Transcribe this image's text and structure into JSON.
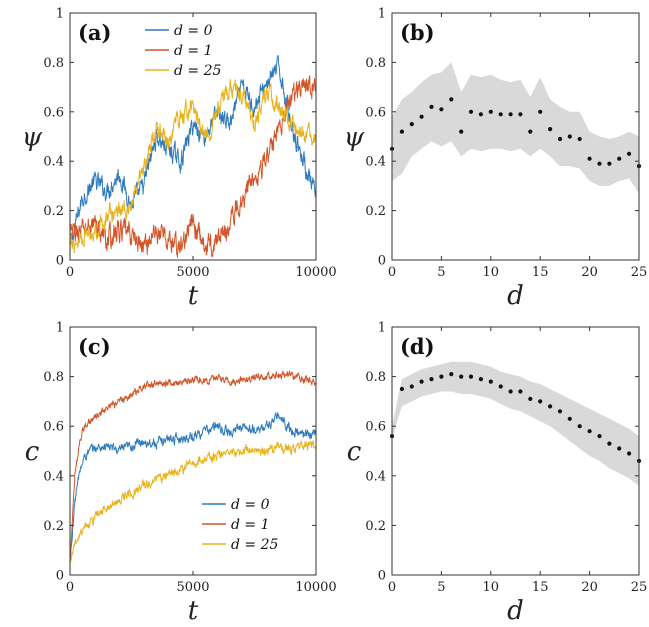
{
  "colors": {
    "d0": "#2f7bbd",
    "d1": "#d2562a",
    "d25": "#e8b21c",
    "band": "#d9d9d9",
    "dots": "#111111",
    "axis": "#333333"
  },
  "chart_data": [
    {
      "id": "a",
      "type": "line",
      "panel_label": "(a)",
      "xlabel": "t",
      "ylabel": "ψ",
      "xlim": [
        0,
        10000
      ],
      "ylim": [
        0,
        1
      ],
      "xticks": [
        0,
        5000,
        10000
      ],
      "xtick_labels": [
        "0",
        "5000",
        "10000"
      ],
      "yticks": [
        0,
        0.2,
        0.4,
        0.6,
        0.8,
        1
      ],
      "ytick_labels": [
        "0",
        "0.2",
        "0.4",
        "0.6",
        "0.8",
        "1"
      ],
      "legend_position": "top-left",
      "series": [
        {
          "name": "d = 0",
          "color_key": "d0",
          "noise": 0.03,
          "x": [
            0,
            500,
            1000,
            1500,
            2000,
            2500,
            3000,
            3500,
            4000,
            4500,
            5000,
            5500,
            6000,
            6500,
            7000,
            7500,
            8000,
            8500,
            9000,
            9500,
            10000
          ],
          "y": [
            0.05,
            0.25,
            0.32,
            0.28,
            0.35,
            0.22,
            0.3,
            0.5,
            0.45,
            0.4,
            0.55,
            0.5,
            0.6,
            0.55,
            0.7,
            0.62,
            0.72,
            0.78,
            0.55,
            0.4,
            0.25
          ]
        },
        {
          "name": "d = 1",
          "color_key": "d1",
          "noise": 0.035,
          "x": [
            0,
            500,
            1000,
            1500,
            2000,
            2500,
            3000,
            3500,
            4000,
            4500,
            5000,
            5500,
            6000,
            6500,
            7000,
            7500,
            8000,
            8500,
            9000,
            9500,
            10000
          ],
          "y": [
            0.1,
            0.12,
            0.15,
            0.08,
            0.12,
            0.1,
            0.05,
            0.12,
            0.08,
            0.05,
            0.15,
            0.05,
            0.08,
            0.15,
            0.25,
            0.35,
            0.4,
            0.55,
            0.65,
            0.72,
            0.7
          ]
        },
        {
          "name": "d = 25",
          "color_key": "d25",
          "noise": 0.03,
          "x": [
            0,
            500,
            1000,
            1500,
            2000,
            2500,
            3000,
            3500,
            4000,
            4500,
            5000,
            5500,
            6000,
            6500,
            7000,
            7500,
            8000,
            8500,
            9000,
            9500,
            10000
          ],
          "y": [
            0.05,
            0.1,
            0.12,
            0.18,
            0.2,
            0.22,
            0.35,
            0.55,
            0.48,
            0.58,
            0.62,
            0.5,
            0.6,
            0.7,
            0.68,
            0.55,
            0.68,
            0.62,
            0.55,
            0.5,
            0.5
          ]
        }
      ]
    },
    {
      "id": "b",
      "type": "scatter",
      "panel_label": "(b)",
      "xlabel": "d",
      "ylabel": "ψ",
      "xlim": [
        0,
        25
      ],
      "ylim": [
        0,
        1
      ],
      "xticks": [
        0,
        5,
        10,
        15,
        20,
        25
      ],
      "xtick_labels": [
        "0",
        "5",
        "10",
        "15",
        "20",
        "25"
      ],
      "yticks": [
        0,
        0.2,
        0.4,
        0.6,
        0.8,
        1
      ],
      "ytick_labels": [
        "0",
        "0.2",
        "0.4",
        "0.6",
        "0.8",
        "1"
      ],
      "x": [
        0,
        1,
        2,
        3,
        4,
        5,
        6,
        7,
        8,
        9,
        10,
        11,
        12,
        13,
        14,
        15,
        16,
        17,
        18,
        19,
        20,
        21,
        22,
        23,
        24,
        25
      ],
      "y": [
        0.45,
        0.52,
        0.55,
        0.58,
        0.62,
        0.61,
        0.65,
        0.52,
        0.6,
        0.59,
        0.6,
        0.59,
        0.59,
        0.59,
        0.52,
        0.6,
        0.53,
        0.49,
        0.5,
        0.49,
        0.41,
        0.39,
        0.39,
        0.41,
        0.43,
        0.38
      ],
      "band_lower": [
        0.32,
        0.35,
        0.42,
        0.45,
        0.48,
        0.46,
        0.48,
        0.42,
        0.45,
        0.44,
        0.45,
        0.45,
        0.44,
        0.45,
        0.42,
        0.45,
        0.42,
        0.38,
        0.38,
        0.37,
        0.32,
        0.3,
        0.3,
        0.32,
        0.33,
        0.27
      ],
      "band_upper": [
        0.58,
        0.65,
        0.68,
        0.72,
        0.75,
        0.76,
        0.8,
        0.68,
        0.75,
        0.74,
        0.75,
        0.73,
        0.72,
        0.73,
        0.66,
        0.74,
        0.65,
        0.62,
        0.6,
        0.6,
        0.52,
        0.5,
        0.49,
        0.5,
        0.52,
        0.5
      ]
    },
    {
      "id": "c",
      "type": "line",
      "panel_label": "(c)",
      "xlabel": "t",
      "ylabel": "c",
      "xlim": [
        0,
        10000
      ],
      "ylim": [
        0,
        1
      ],
      "xticks": [
        0,
        5000,
        10000
      ],
      "xtick_labels": [
        "0",
        "5000",
        "10000"
      ],
      "yticks": [
        0,
        0.2,
        0.4,
        0.6,
        0.8,
        1
      ],
      "ytick_labels": [
        "0",
        "0.2",
        "0.4",
        "0.6",
        "0.8",
        "1"
      ],
      "legend_position": "bottom-right",
      "series": [
        {
          "name": "d = 0",
          "color_key": "d0",
          "noise": 0.015,
          "x": [
            0,
            200,
            400,
            600,
            800,
            1000,
            1500,
            2000,
            2500,
            3000,
            3500,
            4000,
            4500,
            5000,
            5500,
            6000,
            6500,
            7000,
            7500,
            8000,
            8500,
            9000,
            9500,
            10000
          ],
          "y": [
            0.05,
            0.3,
            0.42,
            0.48,
            0.5,
            0.51,
            0.52,
            0.5,
            0.52,
            0.54,
            0.53,
            0.55,
            0.55,
            0.56,
            0.58,
            0.6,
            0.57,
            0.6,
            0.58,
            0.6,
            0.64,
            0.58,
            0.57,
            0.57
          ]
        },
        {
          "name": "d = 1",
          "color_key": "d1",
          "noise": 0.012,
          "x": [
            0,
            200,
            400,
            600,
            800,
            1000,
            1500,
            2000,
            2500,
            3000,
            3500,
            4000,
            4500,
            5000,
            5500,
            6000,
            6500,
            7000,
            7500,
            8000,
            8500,
            9000,
            9500,
            10000
          ],
          "y": [
            0.05,
            0.4,
            0.55,
            0.6,
            0.62,
            0.63,
            0.67,
            0.7,
            0.73,
            0.76,
            0.77,
            0.78,
            0.77,
            0.79,
            0.78,
            0.8,
            0.78,
            0.79,
            0.8,
            0.8,
            0.81,
            0.8,
            0.79,
            0.78
          ]
        },
        {
          "name": "d = 25",
          "color_key": "d25",
          "noise": 0.015,
          "x": [
            0,
            200,
            400,
            600,
            800,
            1000,
            1500,
            2000,
            2500,
            3000,
            3500,
            4000,
            4500,
            5000,
            5500,
            6000,
            6500,
            7000,
            7500,
            8000,
            8500,
            9000,
            9500,
            10000
          ],
          "y": [
            0.05,
            0.12,
            0.17,
            0.2,
            0.21,
            0.23,
            0.27,
            0.3,
            0.33,
            0.36,
            0.38,
            0.41,
            0.43,
            0.45,
            0.47,
            0.48,
            0.49,
            0.5,
            0.51,
            0.5,
            0.52,
            0.5,
            0.52,
            0.53
          ]
        }
      ]
    },
    {
      "id": "d",
      "type": "scatter",
      "panel_label": "(d)",
      "xlabel": "d",
      "ylabel": "c",
      "xlim": [
        0,
        25
      ],
      "ylim": [
        0,
        1
      ],
      "xticks": [
        0,
        5,
        10,
        15,
        20,
        25
      ],
      "xtick_labels": [
        "0",
        "5",
        "10",
        "15",
        "20",
        "25"
      ],
      "yticks": [
        0,
        0.2,
        0.4,
        0.6,
        0.8,
        1
      ],
      "ytick_labels": [
        "0",
        "0.2",
        "0.4",
        "0.6",
        "0.8",
        "1"
      ],
      "x": [
        0,
        1,
        2,
        3,
        4,
        5,
        6,
        7,
        8,
        9,
        10,
        11,
        12,
        13,
        14,
        15,
        16,
        17,
        18,
        19,
        20,
        21,
        22,
        23,
        24,
        25
      ],
      "y": [
        0.56,
        0.75,
        0.76,
        0.78,
        0.79,
        0.8,
        0.81,
        0.8,
        0.8,
        0.79,
        0.78,
        0.76,
        0.74,
        0.74,
        0.71,
        0.7,
        0.68,
        0.66,
        0.63,
        0.6,
        0.58,
        0.56,
        0.53,
        0.51,
        0.49,
        0.46
      ],
      "band_lower": [
        0.55,
        0.68,
        0.7,
        0.72,
        0.73,
        0.74,
        0.74,
        0.73,
        0.73,
        0.72,
        0.71,
        0.69,
        0.67,
        0.66,
        0.64,
        0.62,
        0.6,
        0.57,
        0.54,
        0.51,
        0.48,
        0.46,
        0.43,
        0.41,
        0.39,
        0.36
      ],
      "band_upper": [
        0.6,
        0.79,
        0.81,
        0.83,
        0.84,
        0.85,
        0.86,
        0.86,
        0.86,
        0.85,
        0.84,
        0.82,
        0.81,
        0.8,
        0.78,
        0.77,
        0.75,
        0.73,
        0.71,
        0.69,
        0.67,
        0.65,
        0.63,
        0.61,
        0.59,
        0.56
      ]
    }
  ]
}
